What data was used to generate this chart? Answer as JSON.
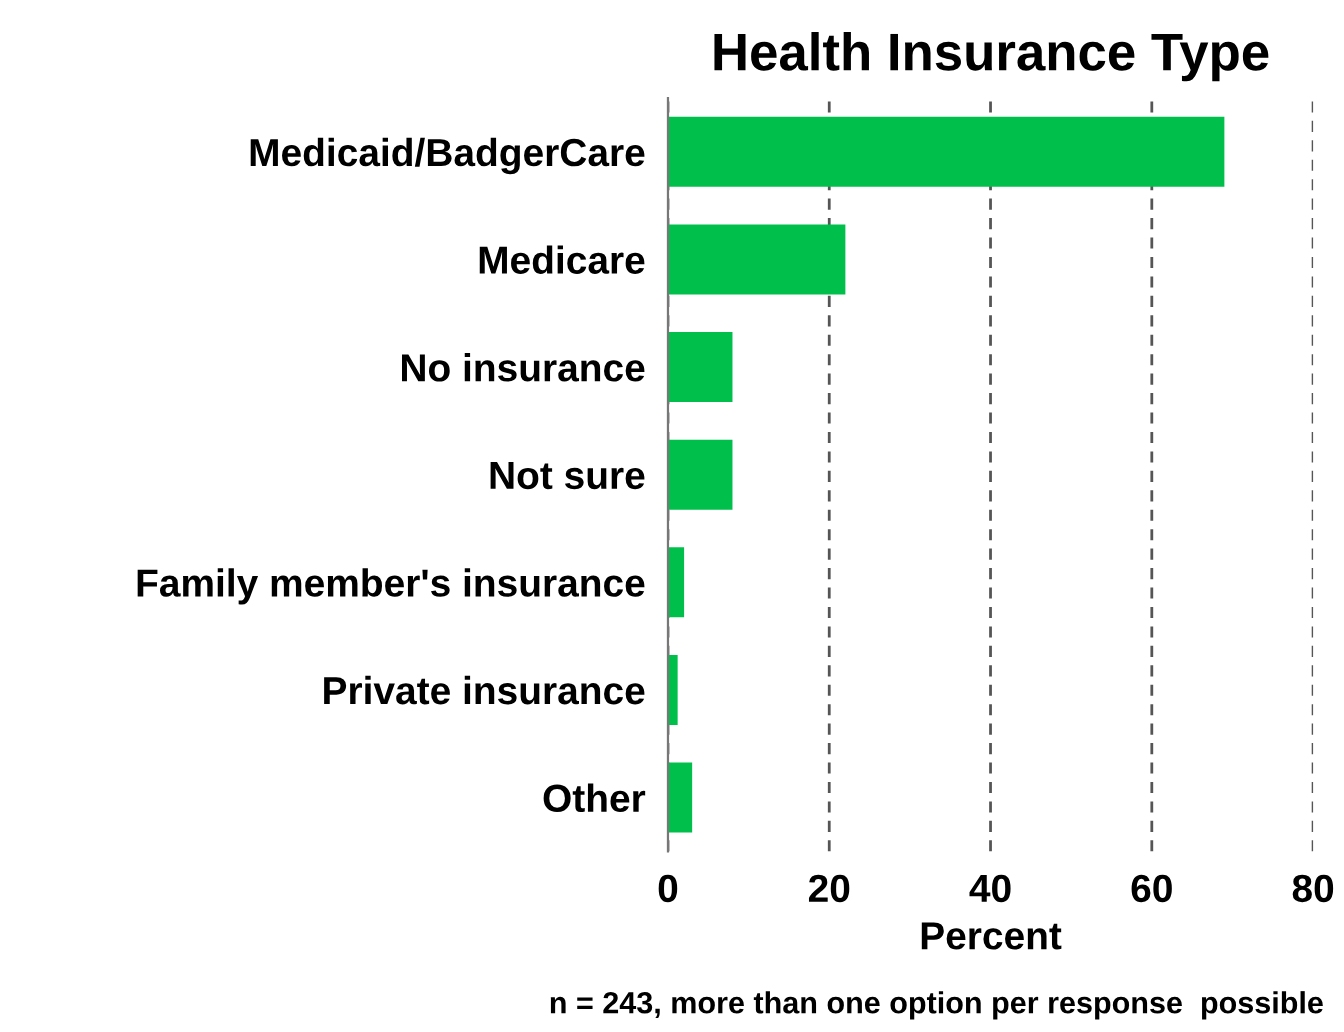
{
  "chart_data": {
    "type": "bar",
    "orientation": "horizontal",
    "title": "Health Insurance Type",
    "xlabel": "Percent",
    "categories": [
      "Medicaid/BadgerCare",
      "Medicare",
      "No insurance",
      "Not sure",
      "Family member's insurance",
      "Private insurance",
      "Other"
    ],
    "values": [
      69,
      22,
      8,
      8,
      2,
      1.2,
      3
    ],
    "color": "#00c04b",
    "xlim": [
      0,
      80
    ],
    "xticks": [
      0,
      20,
      40,
      60,
      80
    ],
    "grid": "x",
    "annotations": [
      "n = 243, more than one option per response  possible"
    ]
  }
}
